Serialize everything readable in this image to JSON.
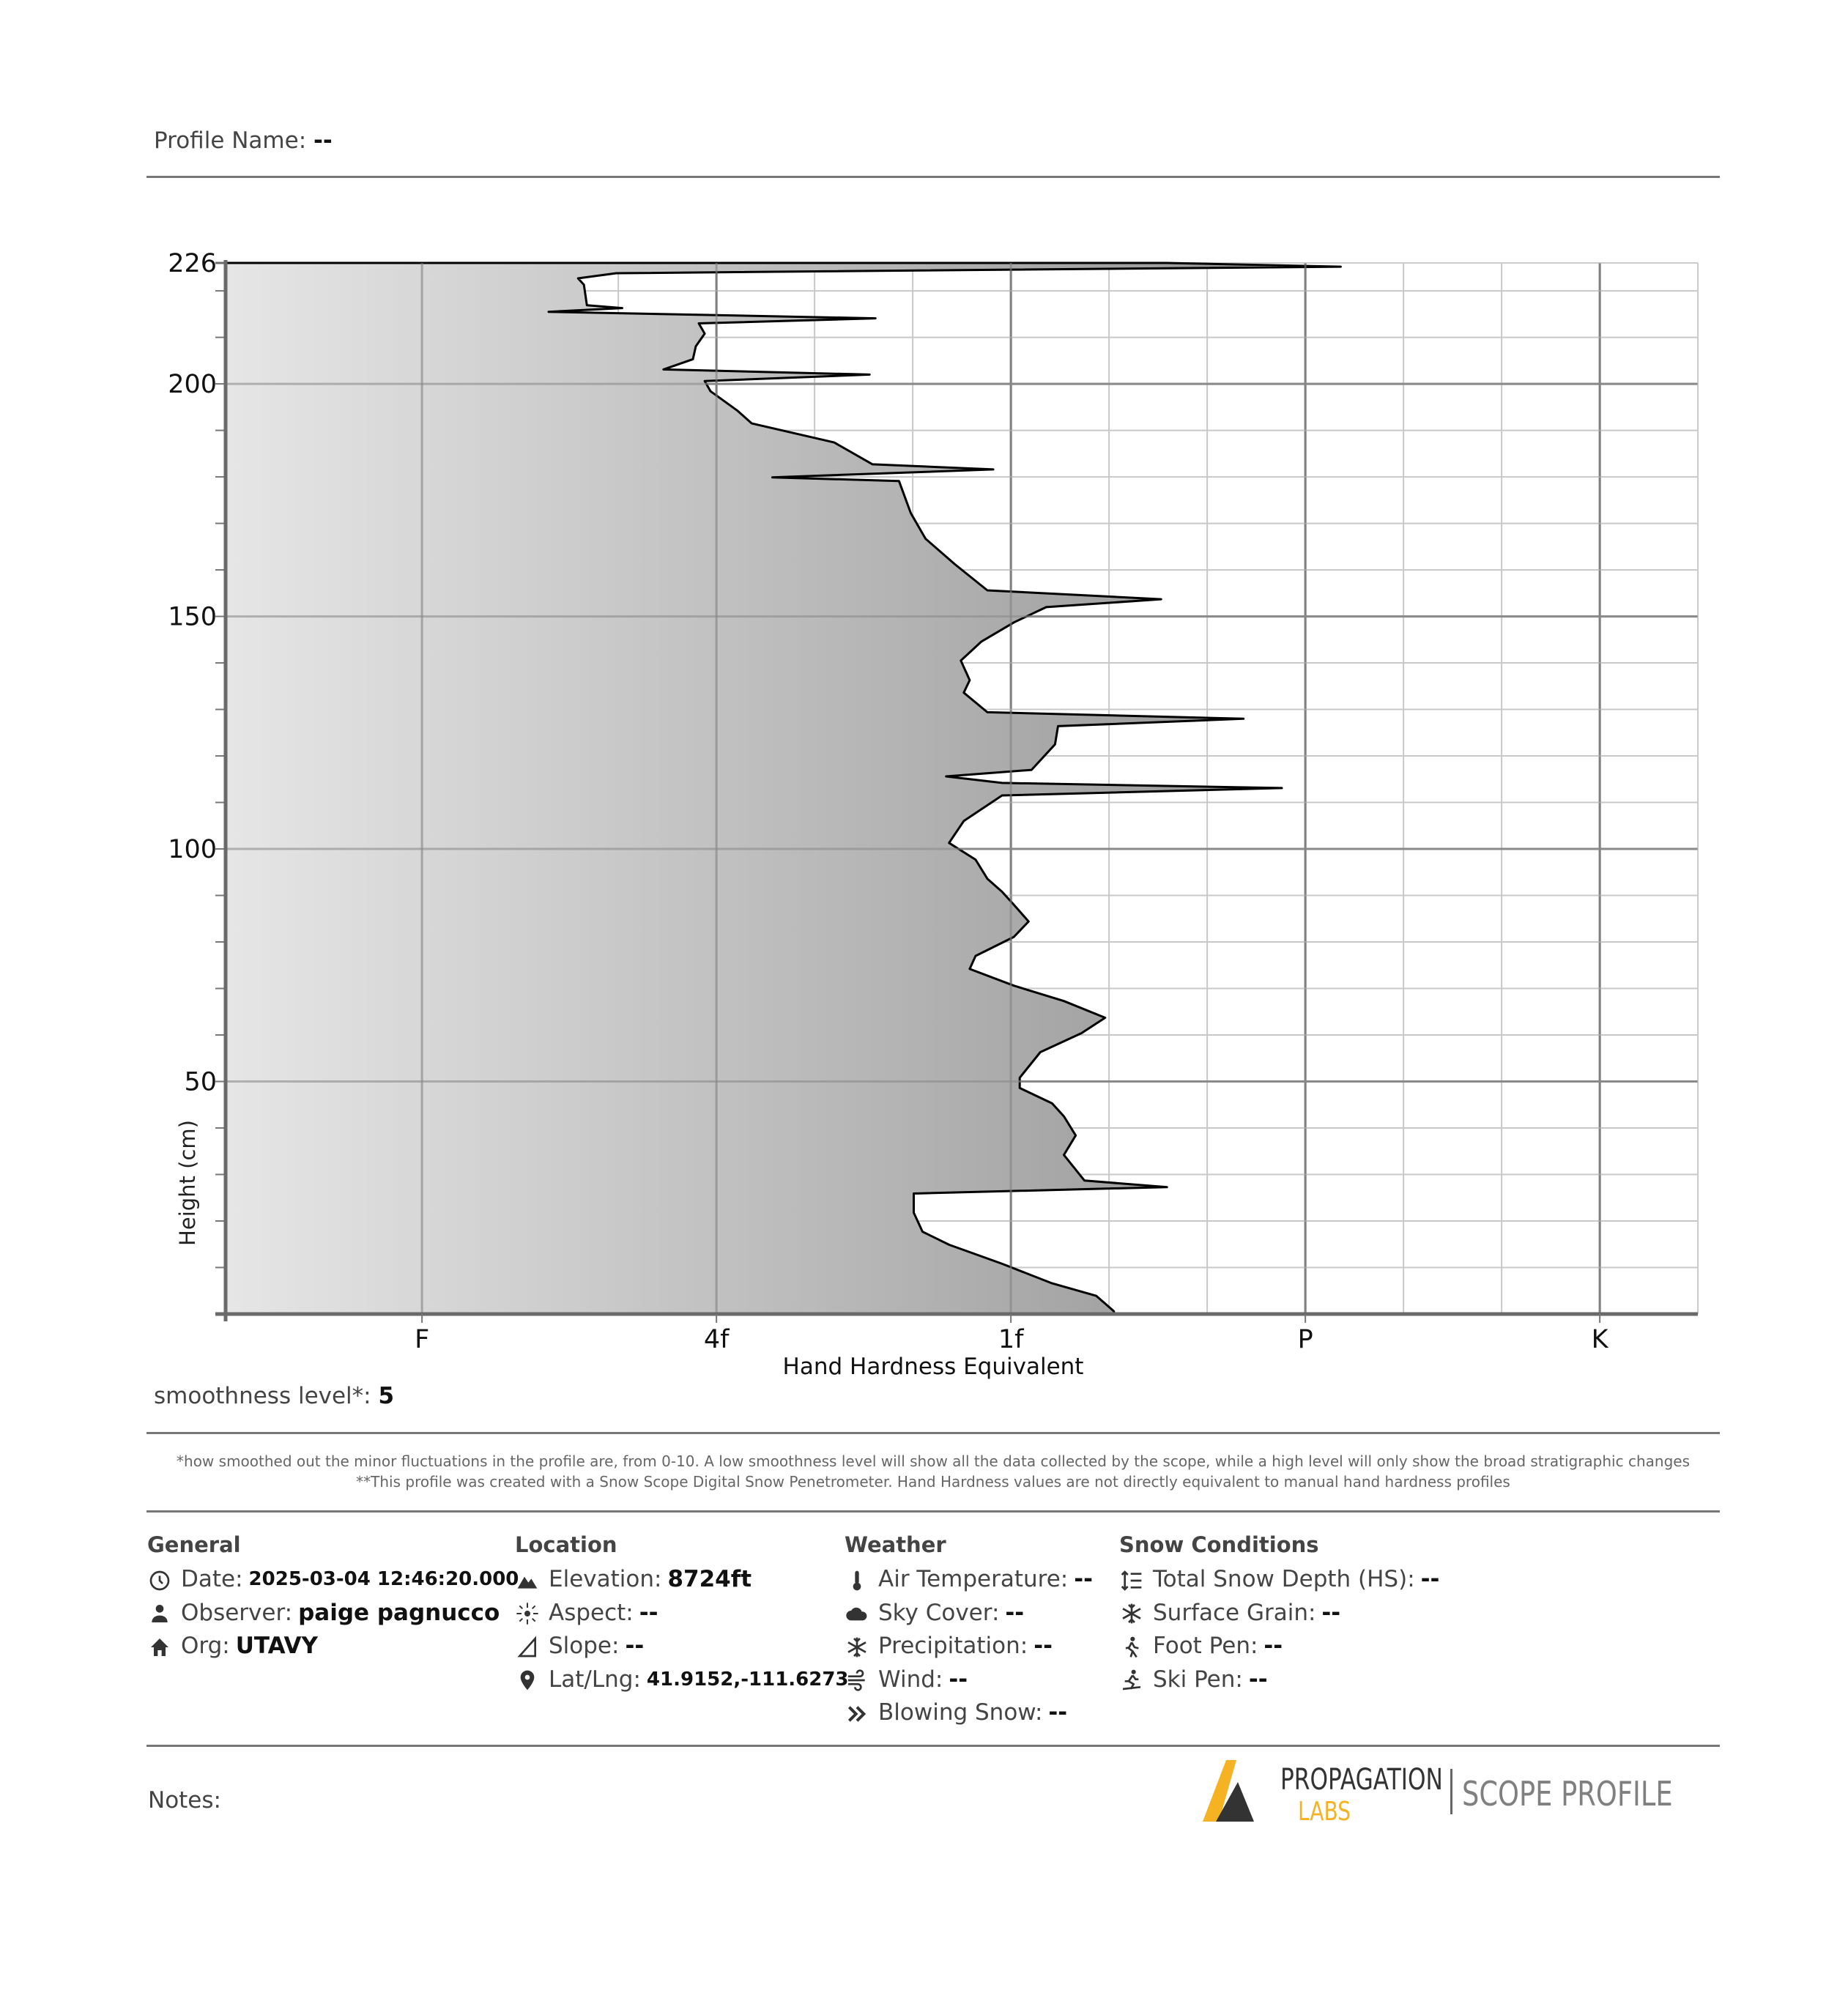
{
  "header": {
    "profile_name_label": "Profile Name:",
    "profile_name_value": "--"
  },
  "smoothness": {
    "label": "smoothness level*:",
    "value": "5"
  },
  "footnotes": [
    "*how smoothed out the minor fluctuations in the profile are, from 0-10.  A low smoothness level will show all the data collected by the scope, while a high level will only show the broad stratigraphic changes",
    "**This profile was created with a Snow Scope Digital Snow Penetrometer.  Hand Hardness values are not directly equivalent to manual hand hardness profiles"
  ],
  "sections": {
    "general": {
      "title": "General",
      "rows": [
        {
          "icon": "clock-icon",
          "label": "Date:",
          "value": "2025-03-04 12:46:20.000"
        },
        {
          "icon": "person-icon",
          "label": "Observer:",
          "value": "paige pagnucco"
        },
        {
          "icon": "home-icon",
          "label": "Org:",
          "value": "UTAVY"
        }
      ]
    },
    "location": {
      "title": "Location",
      "rows": [
        {
          "icon": "mountain-icon",
          "label": "Elevation:",
          "value": "8724ft"
        },
        {
          "icon": "aspect-icon",
          "label": "Aspect:",
          "value": "--"
        },
        {
          "icon": "slope-icon",
          "label": "Slope:",
          "value": "--"
        },
        {
          "icon": "pin-icon",
          "label": "Lat/Lng:",
          "value": "41.9152,-111.6273"
        }
      ]
    },
    "weather": {
      "title": "Weather",
      "rows": [
        {
          "icon": "thermometer-icon",
          "label": "Air Temperature:",
          "value": "--"
        },
        {
          "icon": "cloud-icon",
          "label": "Sky Cover:",
          "value": "--"
        },
        {
          "icon": "snowflake-icon",
          "label": "Precipitation:",
          "value": "--"
        },
        {
          "icon": "wind-icon",
          "label": "Wind:",
          "value": "--"
        },
        {
          "icon": "blowing-snow-icon",
          "label": "Blowing Snow:",
          "value": "--"
        }
      ]
    },
    "snow": {
      "title": "Snow Conditions",
      "rows": [
        {
          "icon": "depth-icon",
          "label": "Total Snow Depth (HS):",
          "value": "--"
        },
        {
          "icon": "surface-grain-icon",
          "label": "Surface Grain:",
          "value": "--"
        },
        {
          "icon": "foot-pen-icon",
          "label": "Foot Pen:",
          "value": "--"
        },
        {
          "icon": "ski-pen-icon",
          "label": "Ski Pen:",
          "value": "--"
        }
      ]
    }
  },
  "notes": {
    "label": "Notes:"
  },
  "logo": {
    "line1": "PROPAGATION",
    "line2": "LABS",
    "product": "SCOPE PROFILE",
    "yellow": "#f5b323",
    "dark": "#333333"
  },
  "chart_data": {
    "type": "area",
    "xlabel": "Hand Hardness Equivalent",
    "ylabel": "Height (cm)",
    "x_ticks": [
      {
        "label": "F",
        "value": 1
      },
      {
        "label": "4f",
        "value": 2
      },
      {
        "label": "1f",
        "value": 3
      },
      {
        "label": "P",
        "value": 4
      },
      {
        "label": "K",
        "value": 5
      }
    ],
    "y_ticks": [
      226,
      200,
      150,
      100,
      50
    ],
    "xlim": [
      0.333,
      5.333
    ],
    "ylim": [
      0,
      226
    ],
    "grid": true,
    "fill_gradient": [
      "#e6e6e6",
      "#777777"
    ],
    "points_height_hardness": [
      [
        226.0,
        3.53
      ],
      [
        225.2,
        4.12
      ],
      [
        223.8,
        1.66
      ],
      [
        222.7,
        1.53
      ],
      [
        221.3,
        1.55
      ],
      [
        216.9,
        1.56
      ],
      [
        216.3,
        1.68
      ],
      [
        215.5,
        1.43
      ],
      [
        214.1,
        2.54
      ],
      [
        213.0,
        1.94
      ],
      [
        210.8,
        1.96
      ],
      [
        208.1,
        1.93
      ],
      [
        205.3,
        1.92
      ],
      [
        203.1,
        1.82
      ],
      [
        202.0,
        2.52
      ],
      [
        200.6,
        1.96
      ],
      [
        198.4,
        1.98
      ],
      [
        194.3,
        2.07
      ],
      [
        191.5,
        2.12
      ],
      [
        187.4,
        2.4
      ],
      [
        182.7,
        2.53
      ],
      [
        181.6,
        2.94
      ],
      [
        179.9,
        2.19
      ],
      [
        179.1,
        2.62
      ],
      [
        172.2,
        2.66
      ],
      [
        166.7,
        2.71
      ],
      [
        161.2,
        2.81
      ],
      [
        155.6,
        2.92
      ],
      [
        153.7,
        3.51
      ],
      [
        152.0,
        3.12
      ],
      [
        148.7,
        3.01
      ],
      [
        144.6,
        2.9
      ],
      [
        140.5,
        2.83
      ],
      [
        136.3,
        2.86
      ],
      [
        133.6,
        2.84
      ],
      [
        129.4,
        2.92
      ],
      [
        128.0,
        3.79
      ],
      [
        126.4,
        3.16
      ],
      [
        122.5,
        3.15
      ],
      [
        117.0,
        3.07
      ],
      [
        115.6,
        2.78
      ],
      [
        114.2,
        2.97
      ],
      [
        113.1,
        3.92
      ],
      [
        111.5,
        2.97
      ],
      [
        106.0,
        2.84
      ],
      [
        101.3,
        2.79
      ],
      [
        97.7,
        2.88
      ],
      [
        93.6,
        2.92
      ],
      [
        90.8,
        2.97
      ],
      [
        88.0,
        3.01
      ],
      [
        84.4,
        3.06
      ],
      [
        81.1,
        3.01
      ],
      [
        77.0,
        2.88
      ],
      [
        74.2,
        2.86
      ],
      [
        70.6,
        3.01
      ],
      [
        67.3,
        3.18
      ],
      [
        63.7,
        3.32
      ],
      [
        60.4,
        3.24
      ],
      [
        56.3,
        3.1
      ],
      [
        50.8,
        3.03
      ],
      [
        48.6,
        3.03
      ],
      [
        45.3,
        3.14
      ],
      [
        42.5,
        3.18
      ],
      [
        38.4,
        3.22
      ],
      [
        34.2,
        3.18
      ],
      [
        28.7,
        3.25
      ],
      [
        27.3,
        3.53
      ],
      [
        25.9,
        2.67
      ],
      [
        21.8,
        2.67
      ],
      [
        17.7,
        2.7
      ],
      [
        14.9,
        2.79
      ],
      [
        10.8,
        2.97
      ],
      [
        6.6,
        3.14
      ],
      [
        3.9,
        3.29
      ],
      [
        0.6,
        3.35
      ],
      [
        0,
        3.35
      ]
    ]
  }
}
